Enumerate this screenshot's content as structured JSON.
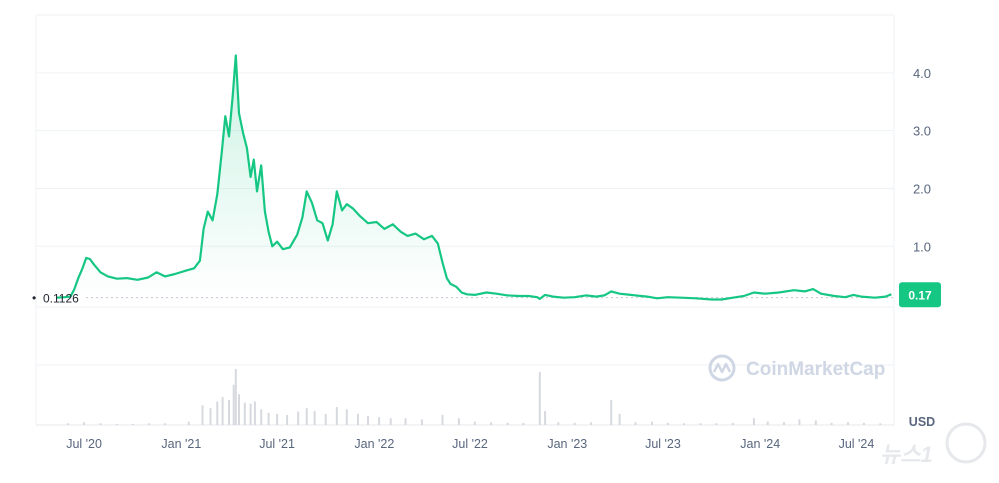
{
  "chart_data": {
    "type": "area",
    "currency": "USD",
    "y_ticks": [
      "1.0",
      "2.0",
      "3.0",
      "4.0"
    ],
    "y_tick_values": [
      1.0,
      2.0,
      3.0,
      4.0
    ],
    "ylim": [
      -0.05,
      5.0
    ],
    "x_ticks": [
      "Jul '20",
      "Jan '21",
      "Jul '21",
      "Jan '22",
      "Jul '22",
      "Jan '23",
      "Jul '23",
      "Jan '24",
      "Jul '24"
    ],
    "x_tick_dates": [
      "2020-07-01",
      "2021-01-01",
      "2021-07-01",
      "2022-01-01",
      "2022-07-01",
      "2023-01-01",
      "2023-07-01",
      "2024-01-01",
      "2024-07-01"
    ],
    "xlim": [
      "2020-04-01",
      "2024-09-10"
    ],
    "start_price": 0.1126,
    "start_price_label": "0.1126",
    "current_price": 0.17,
    "current_price_label": "0.17",
    "series": [
      {
        "points": [
          [
            "2020-05-10",
            0.11
          ],
          [
            "2020-05-25",
            0.12
          ],
          [
            "2020-06-05",
            0.13
          ],
          [
            "2020-06-12",
            0.25
          ],
          [
            "2020-06-20",
            0.45
          ],
          [
            "2020-06-28",
            0.62
          ],
          [
            "2020-07-05",
            0.8
          ],
          [
            "2020-07-12",
            0.78
          ],
          [
            "2020-07-20",
            0.68
          ],
          [
            "2020-08-01",
            0.55
          ],
          [
            "2020-08-15",
            0.48
          ],
          [
            "2020-09-01",
            0.44
          ],
          [
            "2020-09-20",
            0.45
          ],
          [
            "2020-10-10",
            0.42
          ],
          [
            "2020-10-30",
            0.46
          ],
          [
            "2020-11-15",
            0.55
          ],
          [
            "2020-12-01",
            0.48
          ],
          [
            "2020-12-20",
            0.52
          ],
          [
            "2021-01-10",
            0.58
          ],
          [
            "2021-01-25",
            0.62
          ],
          [
            "2021-02-05",
            0.75
          ],
          [
            "2021-02-12",
            1.3
          ],
          [
            "2021-02-20",
            1.6
          ],
          [
            "2021-03-01",
            1.45
          ],
          [
            "2021-03-10",
            1.9
          ],
          [
            "2021-03-18",
            2.6
          ],
          [
            "2021-03-25",
            3.25
          ],
          [
            "2021-04-01",
            2.9
          ],
          [
            "2021-04-08",
            3.6
          ],
          [
            "2021-04-14",
            4.3
          ],
          [
            "2021-04-20",
            3.3
          ],
          [
            "2021-04-28",
            2.95
          ],
          [
            "2021-05-05",
            2.7
          ],
          [
            "2021-05-12",
            2.2
          ],
          [
            "2021-05-18",
            2.5
          ],
          [
            "2021-05-24",
            1.95
          ],
          [
            "2021-06-01",
            2.4
          ],
          [
            "2021-06-08",
            1.6
          ],
          [
            "2021-06-15",
            1.25
          ],
          [
            "2021-06-22",
            1.0
          ],
          [
            "2021-07-01",
            1.08
          ],
          [
            "2021-07-12",
            0.95
          ],
          [
            "2021-07-25",
            0.98
          ],
          [
            "2021-08-08",
            1.2
          ],
          [
            "2021-08-18",
            1.5
          ],
          [
            "2021-08-26",
            1.95
          ],
          [
            "2021-09-05",
            1.75
          ],
          [
            "2021-09-15",
            1.45
          ],
          [
            "2021-09-25",
            1.4
          ],
          [
            "2021-10-05",
            1.1
          ],
          [
            "2021-10-14",
            1.38
          ],
          [
            "2021-10-22",
            1.95
          ],
          [
            "2021-11-01",
            1.62
          ],
          [
            "2021-11-10",
            1.73
          ],
          [
            "2021-11-22",
            1.65
          ],
          [
            "2021-12-05",
            1.52
          ],
          [
            "2021-12-20",
            1.4
          ],
          [
            "2022-01-05",
            1.42
          ],
          [
            "2022-01-20",
            1.3
          ],
          [
            "2022-02-05",
            1.38
          ],
          [
            "2022-02-20",
            1.25
          ],
          [
            "2022-03-05",
            1.18
          ],
          [
            "2022-03-20",
            1.22
          ],
          [
            "2022-04-05",
            1.12
          ],
          [
            "2022-04-20",
            1.18
          ],
          [
            "2022-05-01",
            1.05
          ],
          [
            "2022-05-10",
            0.72
          ],
          [
            "2022-05-18",
            0.45
          ],
          [
            "2022-05-25",
            0.35
          ],
          [
            "2022-06-05",
            0.3
          ],
          [
            "2022-06-15",
            0.2
          ],
          [
            "2022-06-25",
            0.17
          ],
          [
            "2022-07-10",
            0.16
          ],
          [
            "2022-08-01",
            0.2
          ],
          [
            "2022-08-20",
            0.18
          ],
          [
            "2022-09-10",
            0.15
          ],
          [
            "2022-10-01",
            0.14
          ],
          [
            "2022-10-20",
            0.14
          ],
          [
            "2022-11-05",
            0.12
          ],
          [
            "2022-11-10",
            0.09
          ],
          [
            "2022-11-20",
            0.16
          ],
          [
            "2022-12-05",
            0.13
          ],
          [
            "2022-12-25",
            0.11
          ],
          [
            "2023-01-15",
            0.12
          ],
          [
            "2023-02-05",
            0.15
          ],
          [
            "2023-02-25",
            0.13
          ],
          [
            "2023-03-12",
            0.15
          ],
          [
            "2023-03-25",
            0.22
          ],
          [
            "2023-04-10",
            0.18
          ],
          [
            "2023-05-01",
            0.16
          ],
          [
            "2023-06-01",
            0.13
          ],
          [
            "2023-06-20",
            0.1
          ],
          [
            "2023-07-10",
            0.12
          ],
          [
            "2023-08-05",
            0.11
          ],
          [
            "2023-09-01",
            0.1
          ],
          [
            "2023-10-01",
            0.08
          ],
          [
            "2023-10-20",
            0.08
          ],
          [
            "2023-11-10",
            0.11
          ],
          [
            "2023-12-01",
            0.14
          ],
          [
            "2023-12-20",
            0.2
          ],
          [
            "2024-01-10",
            0.18
          ],
          [
            "2024-02-05",
            0.2
          ],
          [
            "2024-03-05",
            0.24
          ],
          [
            "2024-03-25",
            0.22
          ],
          [
            "2024-04-10",
            0.26
          ],
          [
            "2024-04-25",
            0.18
          ],
          [
            "2024-05-20",
            0.14
          ],
          [
            "2024-06-10",
            0.12
          ],
          [
            "2024-06-25",
            0.16
          ],
          [
            "2024-07-10",
            0.13
          ],
          [
            "2024-08-05",
            0.11
          ],
          [
            "2024-08-25",
            0.13
          ],
          [
            "2024-09-05",
            0.17
          ]
        ]
      }
    ],
    "volume_bars": [
      [
        "2020-06-01",
        0.03
      ],
      [
        "2020-07-01",
        0.05
      ],
      [
        "2020-08-01",
        0.03
      ],
      [
        "2020-09-01",
        0.02
      ],
      [
        "2020-10-01",
        0.02
      ],
      [
        "2020-11-01",
        0.03
      ],
      [
        "2020-12-01",
        0.03
      ],
      [
        "2021-01-15",
        0.06
      ],
      [
        "2021-02-10",
        0.35
      ],
      [
        "2021-02-25",
        0.3
      ],
      [
        "2021-03-10",
        0.42
      ],
      [
        "2021-03-20",
        0.5
      ],
      [
        "2021-04-01",
        0.45
      ],
      [
        "2021-04-10",
        0.72
      ],
      [
        "2021-04-14",
        1.0
      ],
      [
        "2021-04-20",
        0.55
      ],
      [
        "2021-05-01",
        0.4
      ],
      [
        "2021-05-12",
        0.38
      ],
      [
        "2021-05-20",
        0.42
      ],
      [
        "2021-06-01",
        0.28
      ],
      [
        "2021-06-15",
        0.22
      ],
      [
        "2021-07-01",
        0.2
      ],
      [
        "2021-07-20",
        0.18
      ],
      [
        "2021-08-10",
        0.24
      ],
      [
        "2021-08-26",
        0.3
      ],
      [
        "2021-09-10",
        0.25
      ],
      [
        "2021-10-01",
        0.2
      ],
      [
        "2021-10-22",
        0.32
      ],
      [
        "2021-11-10",
        0.28
      ],
      [
        "2021-12-01",
        0.2
      ],
      [
        "2021-12-20",
        0.16
      ],
      [
        "2022-01-10",
        0.14
      ],
      [
        "2022-02-01",
        0.12
      ],
      [
        "2022-03-01",
        0.12
      ],
      [
        "2022-04-01",
        0.1
      ],
      [
        "2022-05-10",
        0.18
      ],
      [
        "2022-06-10",
        0.12
      ],
      [
        "2022-07-10",
        0.06
      ],
      [
        "2022-08-10",
        0.05
      ],
      [
        "2022-09-10",
        0.04
      ],
      [
        "2022-10-10",
        0.04
      ],
      [
        "2022-11-10",
        0.95
      ],
      [
        "2022-11-20",
        0.25
      ],
      [
        "2022-12-15",
        0.05
      ],
      [
        "2023-01-15",
        0.04
      ],
      [
        "2023-02-15",
        0.05
      ],
      [
        "2023-03-25",
        0.45
      ],
      [
        "2023-04-10",
        0.2
      ],
      [
        "2023-05-10",
        0.05
      ],
      [
        "2023-06-10",
        0.06
      ],
      [
        "2023-07-10",
        0.04
      ],
      [
        "2023-08-10",
        0.03
      ],
      [
        "2023-09-10",
        0.03
      ],
      [
        "2023-10-10",
        0.03
      ],
      [
        "2023-11-10",
        0.04
      ],
      [
        "2023-12-20",
        0.12
      ],
      [
        "2024-01-15",
        0.06
      ],
      [
        "2024-02-15",
        0.05
      ],
      [
        "2024-03-15",
        0.1
      ],
      [
        "2024-04-15",
        0.08
      ],
      [
        "2024-05-15",
        0.04
      ],
      [
        "2024-06-15",
        0.05
      ],
      [
        "2024-07-15",
        0.04
      ],
      [
        "2024-08-15",
        0.03
      ]
    ],
    "grid": true
  },
  "watermark": {
    "text": "CoinMarketCap"
  },
  "news_watermark": {
    "text": "뉴스1"
  },
  "colors": {
    "line": "#16c784",
    "badge": "#16c784",
    "grid": "#eff2f5",
    "axis_text": "#58667e",
    "volume": "#d6d9df"
  }
}
